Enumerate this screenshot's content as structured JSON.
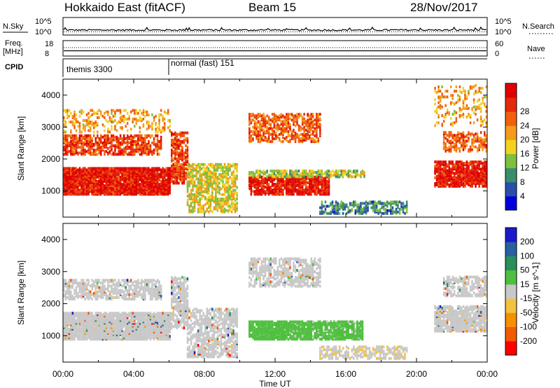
{
  "header": {
    "title": "Hokkaido East (fitACF)",
    "beam": "Beam 15",
    "date": "28/Nov/2017"
  },
  "top_panels": {
    "nsky_label": "N.Sky",
    "nsky_ticks": [
      "10^5",
      "10^0"
    ],
    "nsearch_label": "N.Search",
    "nsearch_ticks": [
      "10^5",
      "10^0"
    ],
    "freq_label": "Freq.",
    "freq_unit": "[MHz]",
    "freq_ticks": [
      "18",
      "8"
    ],
    "nave_label": "Nave",
    "nave_ticks": [
      "60",
      "0"
    ],
    "cpid_label": "CPID",
    "cpid_segments": [
      {
        "label": "themis 3300",
        "start_hour": 0,
        "end_hour": 6
      },
      {
        "label": "normal (fast) 151",
        "start_hour": 6,
        "end_hour": 24
      }
    ]
  },
  "colors": {
    "power": [
      "#0000dd",
      "#2a4faa",
      "#3a8f6a",
      "#7fbf3f",
      "#f2d21f",
      "#f59b1c",
      "#f0600d",
      "#e52a0a",
      "#e00000"
    ],
    "velocity": [
      "#ff0000",
      "#f25a00",
      "#f59000",
      "#f2c240",
      "#c8c8c8",
      "#4fbf3f",
      "#2a8f5a",
      "#2a5fa0",
      "#1a1acc"
    ]
  },
  "chart_data": [
    {
      "type": "heatmap",
      "quantity": "Power",
      "colorbar_label": "Power [dB]",
      "colorbar_ticks": [
        "4",
        "8",
        "12",
        "16",
        "20",
        "24",
        "28"
      ],
      "colorbar_range": [
        0,
        30
      ],
      "ylabel": "Slant Range [km]",
      "yticks": [
        "1000",
        "2000",
        "3000",
        "4000"
      ],
      "ylim": [
        180,
        4500
      ],
      "xlim": [
        0,
        24
      ],
      "xlabel": "",
      "regions": [
        {
          "t0": 0.0,
          "t1": 6.0,
          "r0": 850,
          "r1": 1700,
          "value": 27,
          "density": 0.9
        },
        {
          "t0": 0.0,
          "t1": 5.5,
          "r0": 2100,
          "r1": 2700,
          "value": 24,
          "density": 0.6
        },
        {
          "t0": 0.0,
          "t1": 6.0,
          "r0": 2800,
          "r1": 3500,
          "value": 18,
          "density": 0.25
        },
        {
          "t0": 6.1,
          "t1": 7.0,
          "r0": 1200,
          "r1": 2800,
          "value": 24,
          "density": 0.6
        },
        {
          "t0": 7.0,
          "t1": 9.8,
          "r0": 300,
          "r1": 1800,
          "value": 15,
          "density": 0.55
        },
        {
          "t0": 10.5,
          "t1": 15.0,
          "r0": 850,
          "r1": 1400,
          "value": 27,
          "density": 0.8
        },
        {
          "t0": 10.5,
          "t1": 14.5,
          "r0": 2500,
          "r1": 3400,
          "value": 22,
          "density": 0.55
        },
        {
          "t0": 10.5,
          "t1": 17.0,
          "r0": 1400,
          "r1": 1600,
          "value": 13,
          "density": 0.6
        },
        {
          "t0": 14.5,
          "t1": 19.5,
          "r0": 250,
          "r1": 650,
          "value": 8,
          "density": 0.5
        },
        {
          "t0": 21.0,
          "t1": 24.0,
          "r0": 1100,
          "r1": 1900,
          "value": 27,
          "density": 0.75
        },
        {
          "t0": 21.5,
          "t1": 24.0,
          "r0": 2200,
          "r1": 2800,
          "value": 22,
          "density": 0.5
        },
        {
          "t0": 21.0,
          "t1": 24.0,
          "r0": 3000,
          "r1": 4300,
          "value": 18,
          "density": 0.2
        }
      ]
    },
    {
      "type": "heatmap",
      "quantity": "Velocity",
      "colorbar_label": "Velocity [m s^-1]",
      "colorbar_ticks": [
        "-200",
        "-100",
        "-50",
        "-15",
        "15",
        "50",
        "100",
        "200"
      ],
      "colorbar_range": [
        -250,
        250
      ],
      "ylabel": "Slant Range [km]",
      "yticks": [
        "1000",
        "2000",
        "3000",
        "4000"
      ],
      "ylim": [
        180,
        4500
      ],
      "xlim": [
        0,
        24
      ],
      "xlabel": "Time UT",
      "xticks": [
        "00:00",
        "04:00",
        "08:00",
        "12:00",
        "16:00",
        "20:00",
        "00:00"
      ],
      "regions": [
        {
          "t0": 0.0,
          "t1": 6.0,
          "r0": 850,
          "r1": 1700,
          "value": 0,
          "density": 0.9
        },
        {
          "t0": 0.0,
          "t1": 5.5,
          "r0": 2100,
          "r1": 2700,
          "value": 0,
          "density": 0.6
        },
        {
          "t0": 6.1,
          "t1": 7.0,
          "r0": 1200,
          "r1": 2800,
          "value": 0,
          "density": 0.6
        },
        {
          "t0": 7.0,
          "t1": 9.8,
          "r0": 300,
          "r1": 1800,
          "value": 0,
          "density": 0.55
        },
        {
          "t0": 10.5,
          "t1": 12.5,
          "r0": 850,
          "r1": 1400,
          "value": 60,
          "density": 0.8
        },
        {
          "t0": 12.5,
          "t1": 17.0,
          "r0": 850,
          "r1": 1400,
          "value": 40,
          "density": 0.8
        },
        {
          "t0": 10.5,
          "t1": 14.5,
          "r0": 2500,
          "r1": 3400,
          "value": 0,
          "density": 0.55
        },
        {
          "t0": 14.5,
          "t1": 19.5,
          "r0": 250,
          "r1": 650,
          "value": -20,
          "density": 0.5
        },
        {
          "t0": 21.0,
          "t1": 24.0,
          "r0": 1100,
          "r1": 1900,
          "value": 0,
          "density": 0.75
        },
        {
          "t0": 21.5,
          "t1": 24.0,
          "r0": 2200,
          "r1": 2800,
          "value": 0,
          "density": 0.5
        }
      ]
    }
  ]
}
